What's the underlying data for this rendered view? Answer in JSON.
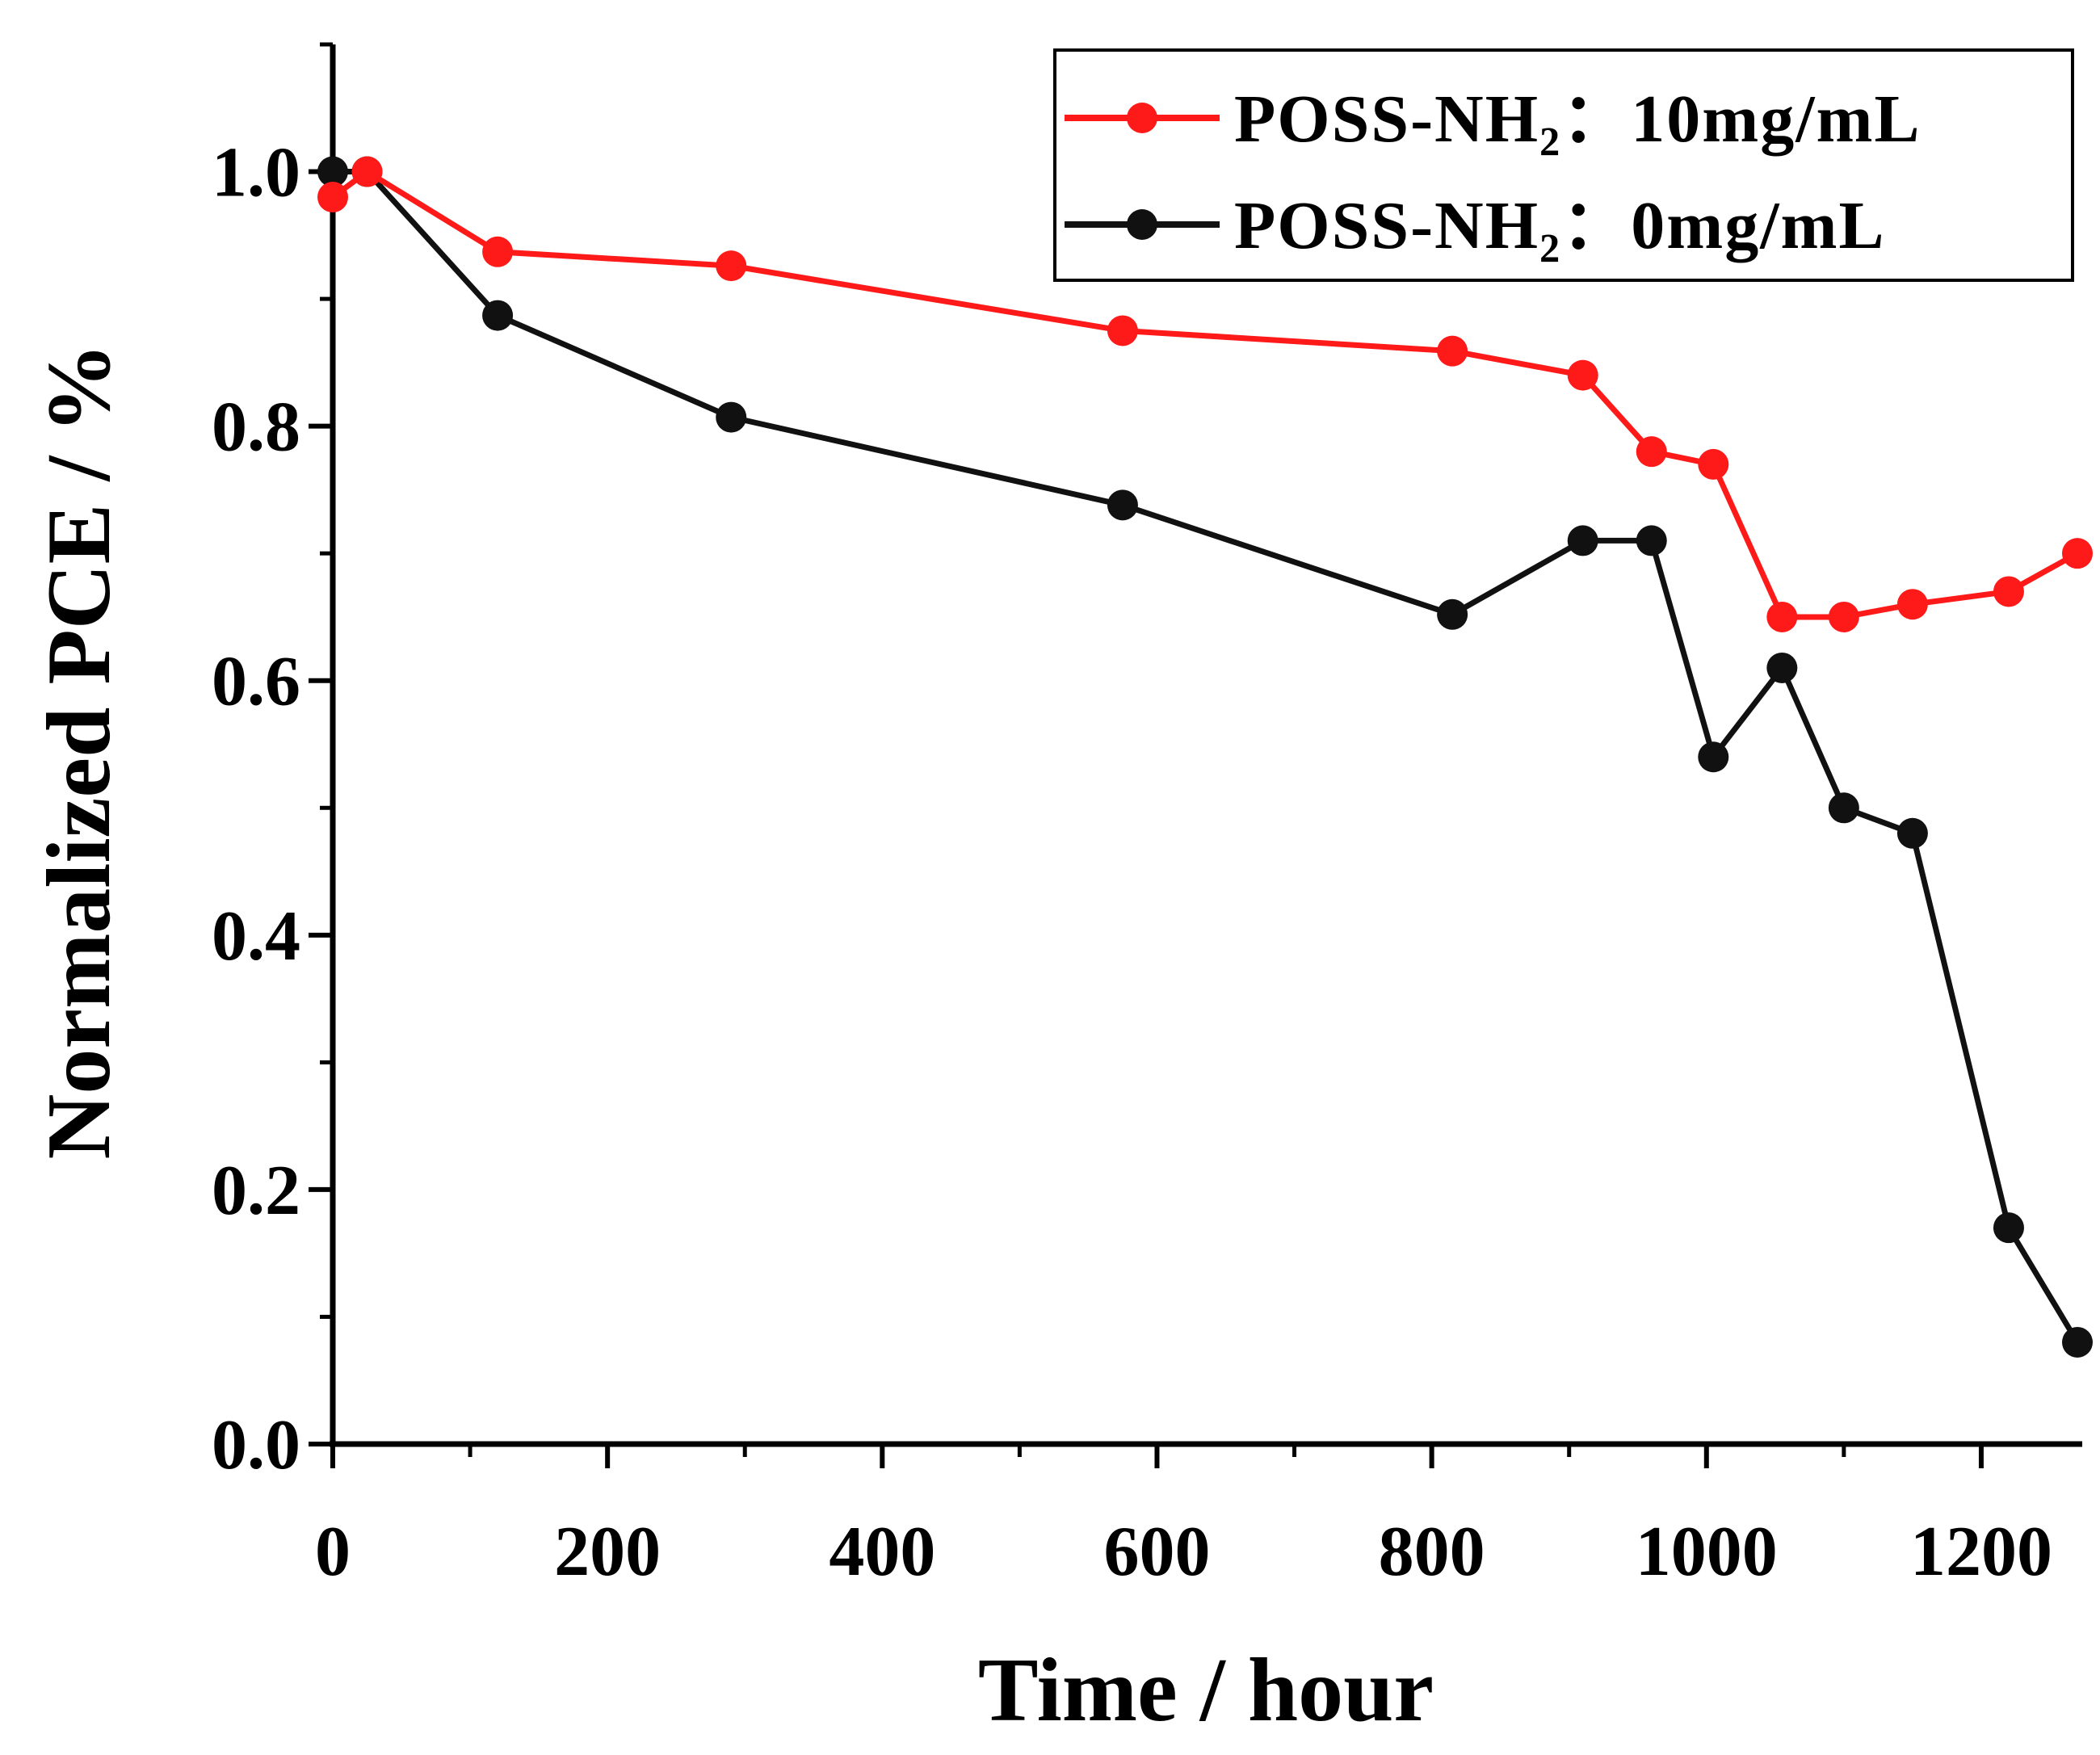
{
  "chart_data": {
    "type": "line",
    "title": "",
    "xlabel": "Time / hour",
    "ylabel": "Normalized PCE / %",
    "xlim": [
      0,
      1270
    ],
    "ylim": [
      0.0,
      1.1
    ],
    "xticks": [
      0,
      200,
      400,
      600,
      800,
      1000,
      1200
    ],
    "yticks": [
      0.0,
      0.2,
      0.4,
      0.6,
      0.8,
      1.0
    ],
    "xtick_labels": [
      "0",
      "200",
      "400",
      "600",
      "800",
      "1000",
      "1200"
    ],
    "ytick_labels": [
      "0.0",
      "0.2",
      "0.4",
      "0.6",
      "0.8",
      "1.0"
    ],
    "grid": false,
    "legend_position": "top-right",
    "series": [
      {
        "name": "POSS-NH₂：10mg/mL",
        "color": "#ff1a1a",
        "x": [
          0,
          25,
          120,
          290,
          575,
          815,
          910,
          960,
          1005,
          1055,
          1100,
          1150,
          1220,
          1270
        ],
        "y": [
          0.98,
          1.0,
          0.937,
          0.926,
          0.875,
          0.859,
          0.84,
          0.78,
          0.77,
          0.65,
          0.65,
          0.66,
          0.67,
          0.7
        ]
      },
      {
        "name": "POSS-NH₂：0mg/mL",
        "color": "#111111",
        "x": [
          0,
          25,
          120,
          290,
          575,
          815,
          910,
          960,
          1005,
          1055,
          1100,
          1150,
          1220,
          1270
        ],
        "y": [
          1.0,
          1.0,
          0.887,
          0.807,
          0.738,
          0.652,
          0.71,
          0.71,
          0.54,
          0.61,
          0.5,
          0.48,
          0.17,
          0.08
        ]
      }
    ]
  }
}
